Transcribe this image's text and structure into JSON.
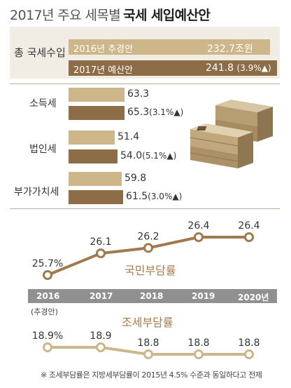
{
  "title": {
    "plain": "2017년 주요 세목별",
    "bold": "국세 세입예산안"
  },
  "revenue": {
    "total_label": "총 국세수입",
    "rows": [
      {
        "label": "2016년 추경안",
        "value": "232.7조원"
      },
      {
        "label": "2017년 예산안",
        "value": "241.8",
        "change": "(3.9%▲)"
      }
    ]
  },
  "categories": [
    {
      "name": "소득세",
      "v2016": "63.3",
      "v2017": "65.3",
      "change": "(3.1%▲)"
    },
    {
      "name": "법인세",
      "v2016": "51.4",
      "v2017": "54.0",
      "change": "(5.1%▲)"
    },
    {
      "name": "부가가치세",
      "v2016": "59.8",
      "v2017": "61.5",
      "change": "(3.0%▲)"
    }
  ],
  "axis": {
    "years": [
      "2016",
      "2017",
      "2018",
      "2019",
      "2020년"
    ],
    "sub_label": "(추경안)"
  },
  "national_burden": {
    "title": "국민부담률",
    "labels": [
      "25.7%",
      "26.1",
      "26.2",
      "26.4",
      "26.4"
    ]
  },
  "tax_burden": {
    "title": "조세부담률",
    "labels": [
      "18.9%",
      "18.9",
      "18.8",
      "18.8",
      "18.8"
    ]
  },
  "note": "※ 조세부담률은 지방세부담률이 2015년 4.5% 수준과 동일하다고 전제",
  "colors": {
    "bar_light": "#cdb68a",
    "bar_dark": "#8c6d47",
    "line_national": "#a07a4e",
    "line_tax": "#cdb68a",
    "axis": "#909090"
  },
  "chart_data": [
    {
      "type": "bar",
      "title": "총 국세수입",
      "categories": [
        "2016년 추경안",
        "2017년 예산안"
      ],
      "values": [
        232.7,
        241.8
      ]
    },
    {
      "type": "bar",
      "categories": [
        "소득세",
        "법인세",
        "부가가치세"
      ],
      "series": [
        {
          "name": "2016년 추경안",
          "values": [
            63.3,
            51.4,
            59.8
          ]
        },
        {
          "name": "2017년 예산안",
          "values": [
            65.3,
            54.0,
            61.5
          ]
        }
      ]
    },
    {
      "type": "line",
      "x": [
        "2016",
        "2017",
        "2018",
        "2019",
        "2020"
      ],
      "series": [
        {
          "name": "국민부담률",
          "values": [
            25.7,
            26.1,
            26.2,
            26.4,
            26.4
          ]
        },
        {
          "name": "조세부담률",
          "values": [
            18.9,
            18.9,
            18.8,
            18.8,
            18.8
          ]
        }
      ]
    }
  ]
}
